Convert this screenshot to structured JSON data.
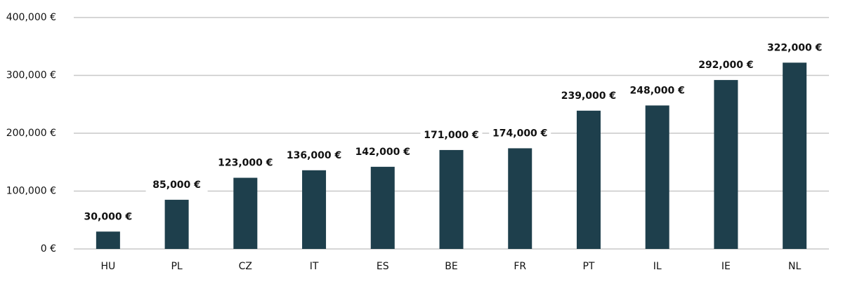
{
  "chart_data": {
    "type": "bar",
    "categories": [
      "HU",
      "PL",
      "CZ",
      "IT",
      "ES",
      "BE",
      "FR",
      "PT",
      "IL",
      "IE",
      "NL"
    ],
    "values": [
      30000,
      85000,
      123000,
      136000,
      142000,
      171000,
      174000,
      239000,
      248000,
      292000,
      322000
    ],
    "value_labels": [
      "30,000 €",
      "85,000 €",
      "123,000 €",
      "136,000 €",
      "142,000 €",
      "171,000 €",
      "174,000 €",
      "239,000 €",
      "248,000 €",
      "292,000 €",
      "322,000 €"
    ],
    "color": "#1e3f4c",
    "ylim": [
      0,
      400000
    ],
    "yticks": [
      {
        "value": 0,
        "label": "0 €"
      },
      {
        "value": 100000,
        "label": "100,000 €"
      },
      {
        "value": 200000,
        "label": "200,000 €"
      },
      {
        "value": 300000,
        "label": "300,000 €"
      },
      {
        "value": 400000,
        "label": "400,000 €"
      }
    ],
    "grid": true
  }
}
